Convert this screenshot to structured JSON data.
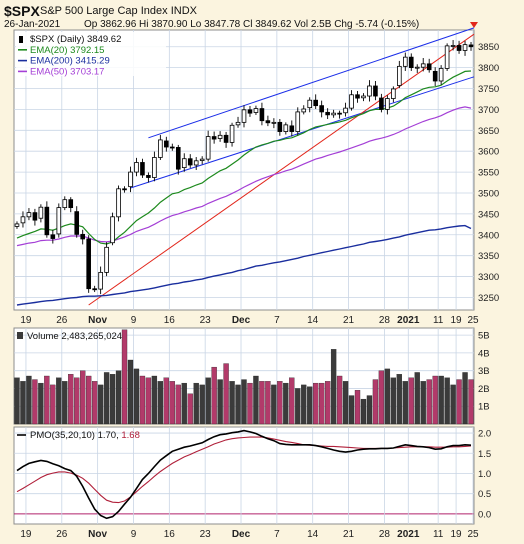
{
  "header": {
    "symbol": "$SPX",
    "name": "S&P 500 Large Cap Index",
    "exchange": "INDX",
    "date": "26-Jan-2021",
    "ohlc_line": "Op 3862.96  Hi 3870.90  Lo 3847.78  Cl 3849.62  Vol 2.5B  Chg -5.74 (-0.15%)"
  },
  "colors": {
    "background": "#fbf4df",
    "plot_bg": "#ffffff",
    "grid": "#c9d5e5",
    "up": "#ffffff",
    "down": "#000000",
    "ema20": "#1d8a1d",
    "ema200": "#1a2e9e",
    "ema50": "#a43fd6",
    "trend_blue": "#1b2ee8",
    "trend_red": "#e2261b",
    "vol_up": "#3b3b3b",
    "vol_down": "#b23a6a",
    "pmo": "#000000",
    "pmo_signal": "#b0203a",
    "zero_line": "#b0206b"
  },
  "chart_data": [
    {
      "type": "candlestick",
      "title": "$SPX (Daily) 3849.62",
      "legend": [
        {
          "name": "$SPX (Daily)",
          "value": "3849.62"
        },
        {
          "name": "EMA(20)",
          "value": "3792.15"
        },
        {
          "name": "EMA(200)",
          "value": "3415.29"
        },
        {
          "name": "EMA(50)",
          "value": "3703.17"
        }
      ],
      "legend_placement": "top-left",
      "x_tick_labels": [
        "19",
        "26",
        "Nov",
        "9",
        "16",
        "23",
        "Dec",
        "7",
        "14",
        "21",
        "28",
        "2021",
        "11",
        "19",
        "25"
      ],
      "y_ticks": [
        3250,
        3300,
        3350,
        3400,
        3450,
        3500,
        3550,
        3600,
        3650,
        3700,
        3750,
        3800,
        3850
      ],
      "ylim": [
        3220,
        3890
      ],
      "grid": true,
      "close": [
        3426,
        3443,
        3453,
        3435,
        3466,
        3400,
        3391,
        3465,
        3484,
        3465,
        3401,
        3390,
        3271,
        3270,
        3310,
        3370,
        3443,
        3510,
        3509,
        3550,
        3573,
        3543,
        3537,
        3585,
        3627,
        3610,
        3609,
        3557,
        3582,
        3567,
        3577,
        3581,
        3635,
        3629,
        3638,
        3621,
        3662,
        3669,
        3699,
        3691,
        3702,
        3673,
        3668,
        3669,
        3647,
        3663,
        3647,
        3694,
        3701,
        3722,
        3709,
        3694,
        3687,
        3691,
        3690,
        3703,
        3735,
        3727,
        3732,
        3756,
        3732,
        3700,
        3726,
        3749,
        3803,
        3825,
        3800,
        3801,
        3809,
        3795,
        3768,
        3798,
        3852,
        3853,
        3841,
        3855,
        3850
      ],
      "ema20": [
        3392,
        3398,
        3403,
        3408,
        3414,
        3413,
        3411,
        3416,
        3422,
        3426,
        3423,
        3419,
        3403,
        3389,
        3380,
        3378,
        3383,
        3395,
        3406,
        3420,
        3434,
        3443,
        3452,
        3464,
        3478,
        3488,
        3498,
        3501,
        3508,
        3513,
        3519,
        3524,
        3535,
        3544,
        3553,
        3559,
        3569,
        3579,
        3591,
        3601,
        3610,
        3615,
        3619,
        3624,
        3626,
        3630,
        3632,
        3638,
        3644,
        3652,
        3658,
        3661,
        3664,
        3667,
        3670,
        3674,
        3680,
        3685,
        3690,
        3697,
        3700,
        3700,
        3703,
        3708,
        3717,
        3728,
        3735,
        3742,
        3749,
        3753,
        3754,
        3758,
        3768,
        3777,
        3784,
        3791,
        3792
      ],
      "ema50": [
        3374,
        3377,
        3380,
        3382,
        3386,
        3387,
        3387,
        3390,
        3394,
        3397,
        3397,
        3397,
        3392,
        3387,
        3384,
        3383,
        3385,
        3390,
        3395,
        3401,
        3408,
        3413,
        3418,
        3425,
        3433,
        3440,
        3446,
        3450,
        3455,
        3459,
        3464,
        3468,
        3475,
        3481,
        3487,
        3492,
        3499,
        3506,
        3514,
        3521,
        3528,
        3534,
        3539,
        3544,
        3548,
        3553,
        3557,
        3563,
        3569,
        3575,
        3581,
        3585,
        3590,
        3594,
        3598,
        3603,
        3608,
        3613,
        3618,
        3624,
        3628,
        3631,
        3635,
        3640,
        3646,
        3653,
        3659,
        3665,
        3671,
        3676,
        3680,
        3685,
        3692,
        3698,
        3703,
        3706,
        3703
      ],
      "ema200": [
        3232,
        3234,
        3236,
        3238,
        3240,
        3242,
        3243,
        3245,
        3247,
        3249,
        3250,
        3252,
        3253,
        3253,
        3254,
        3255,
        3257,
        3259,
        3261,
        3264,
        3266,
        3268,
        3270,
        3273,
        3276,
        3279,
        3282,
        3284,
        3287,
        3289,
        3292,
        3294,
        3298,
        3301,
        3304,
        3307,
        3310,
        3314,
        3317,
        3321,
        3325,
        3327,
        3330,
        3333,
        3335,
        3338,
        3341,
        3344,
        3348,
        3351,
        3354,
        3357,
        3360,
        3363,
        3366,
        3369,
        3372,
        3375,
        3378,
        3382,
        3384,
        3386,
        3389,
        3392,
        3395,
        3399,
        3402,
        3405,
        3408,
        3411,
        3412,
        3414,
        3417,
        3419,
        3421,
        3422,
        3415
      ]
    },
    {
      "type": "bar",
      "title": "Volume 2,483,265,024",
      "y_tick_labels": [
        "1B",
        "2B",
        "3B",
        "4B",
        "5B"
      ],
      "ylim": [
        0,
        5.4
      ],
      "values": [
        2.6,
        2.4,
        2.7,
        2.5,
        2.3,
        2.7,
        2.2,
        2.6,
        2.4,
        2.8,
        2.6,
        3.0,
        2.7,
        2.4,
        2.2,
        2.9,
        2.8,
        3.0,
        5.3,
        3.6,
        3.1,
        2.7,
        2.6,
        2.7,
        2.4,
        2.6,
        2.4,
        2.2,
        2.3,
        1.7,
        2.3,
        2.2,
        2.6,
        3.2,
        2.5,
        3.4,
        2.4,
        2.2,
        2.5,
        2.3,
        2.7,
        2.4,
        2.4,
        2.2,
        2.4,
        2.3,
        2.6,
        2.0,
        2.2,
        2.1,
        2.3,
        2.3,
        2.4,
        4.2,
        2.7,
        2.4,
        1.6,
        1.9,
        1.4,
        1.6,
        2.5,
        3.0,
        3.1,
        2.6,
        2.8,
        2.4,
        2.6,
        2.9,
        2.4,
        2.5,
        2.7,
        2.7,
        2.6,
        2.2,
        2.5,
        2.9,
        2.5
      ]
    },
    {
      "type": "line",
      "title": "PMO(35,20,10)",
      "legend": [
        {
          "name": "PMO(35,20,10)",
          "value": "1.70"
        },
        {
          "name": "Signal",
          "value": "1.68"
        }
      ],
      "y_ticks": [
        0.0,
        0.5,
        1.0,
        1.5,
        2.0
      ],
      "y_tick_labels": [
        "0.0",
        "0.5",
        "1.0",
        "1.5",
        "2.0"
      ],
      "ylim": [
        -0.25,
        2.15
      ],
      "pmo": [
        1.07,
        1.17,
        1.25,
        1.29,
        1.32,
        1.3,
        1.24,
        1.19,
        1.12,
        1.07,
        0.93,
        0.68,
        0.39,
        0.12,
        -0.04,
        -0.11,
        -0.07,
        0.06,
        0.24,
        0.41,
        0.63,
        0.85,
        1.0,
        1.17,
        1.33,
        1.44,
        1.55,
        1.6,
        1.65,
        1.68,
        1.72,
        1.76,
        1.84,
        1.91,
        1.96,
        1.98,
        2.01,
        2.03,
        2.06,
        2.03,
        1.99,
        1.92,
        1.86,
        1.81,
        1.74,
        1.72,
        1.71,
        1.71,
        1.71,
        1.71,
        1.69,
        1.66,
        1.62,
        1.58,
        1.55,
        1.53,
        1.55,
        1.58,
        1.6,
        1.61,
        1.61,
        1.62,
        1.62,
        1.63,
        1.67,
        1.71,
        1.69,
        1.67,
        1.66,
        1.64,
        1.6,
        1.61,
        1.66,
        1.69,
        1.69,
        1.71,
        1.7
      ],
      "signal": [
        0.55,
        0.63,
        0.72,
        0.81,
        0.9,
        0.97,
        1.01,
        1.04,
        1.04,
        1.01,
        0.96,
        0.88,
        0.76,
        0.61,
        0.46,
        0.34,
        0.29,
        0.28,
        0.32,
        0.42,
        0.55,
        0.68,
        0.8,
        0.93,
        1.05,
        1.15,
        1.25,
        1.33,
        1.41,
        1.47,
        1.54,
        1.6,
        1.66,
        1.73,
        1.78,
        1.83,
        1.86,
        1.88,
        1.89,
        1.9,
        1.9,
        1.9,
        1.88,
        1.85,
        1.82,
        1.79,
        1.77,
        1.74,
        1.71,
        1.7,
        1.69,
        1.68,
        1.67,
        1.67,
        1.66,
        1.65,
        1.64,
        1.63,
        1.62,
        1.62,
        1.62,
        1.62,
        1.62,
        1.63,
        1.64,
        1.65,
        1.66,
        1.66,
        1.66,
        1.66,
        1.65,
        1.65,
        1.65,
        1.66,
        1.66,
        1.67,
        1.68
      ]
    }
  ]
}
